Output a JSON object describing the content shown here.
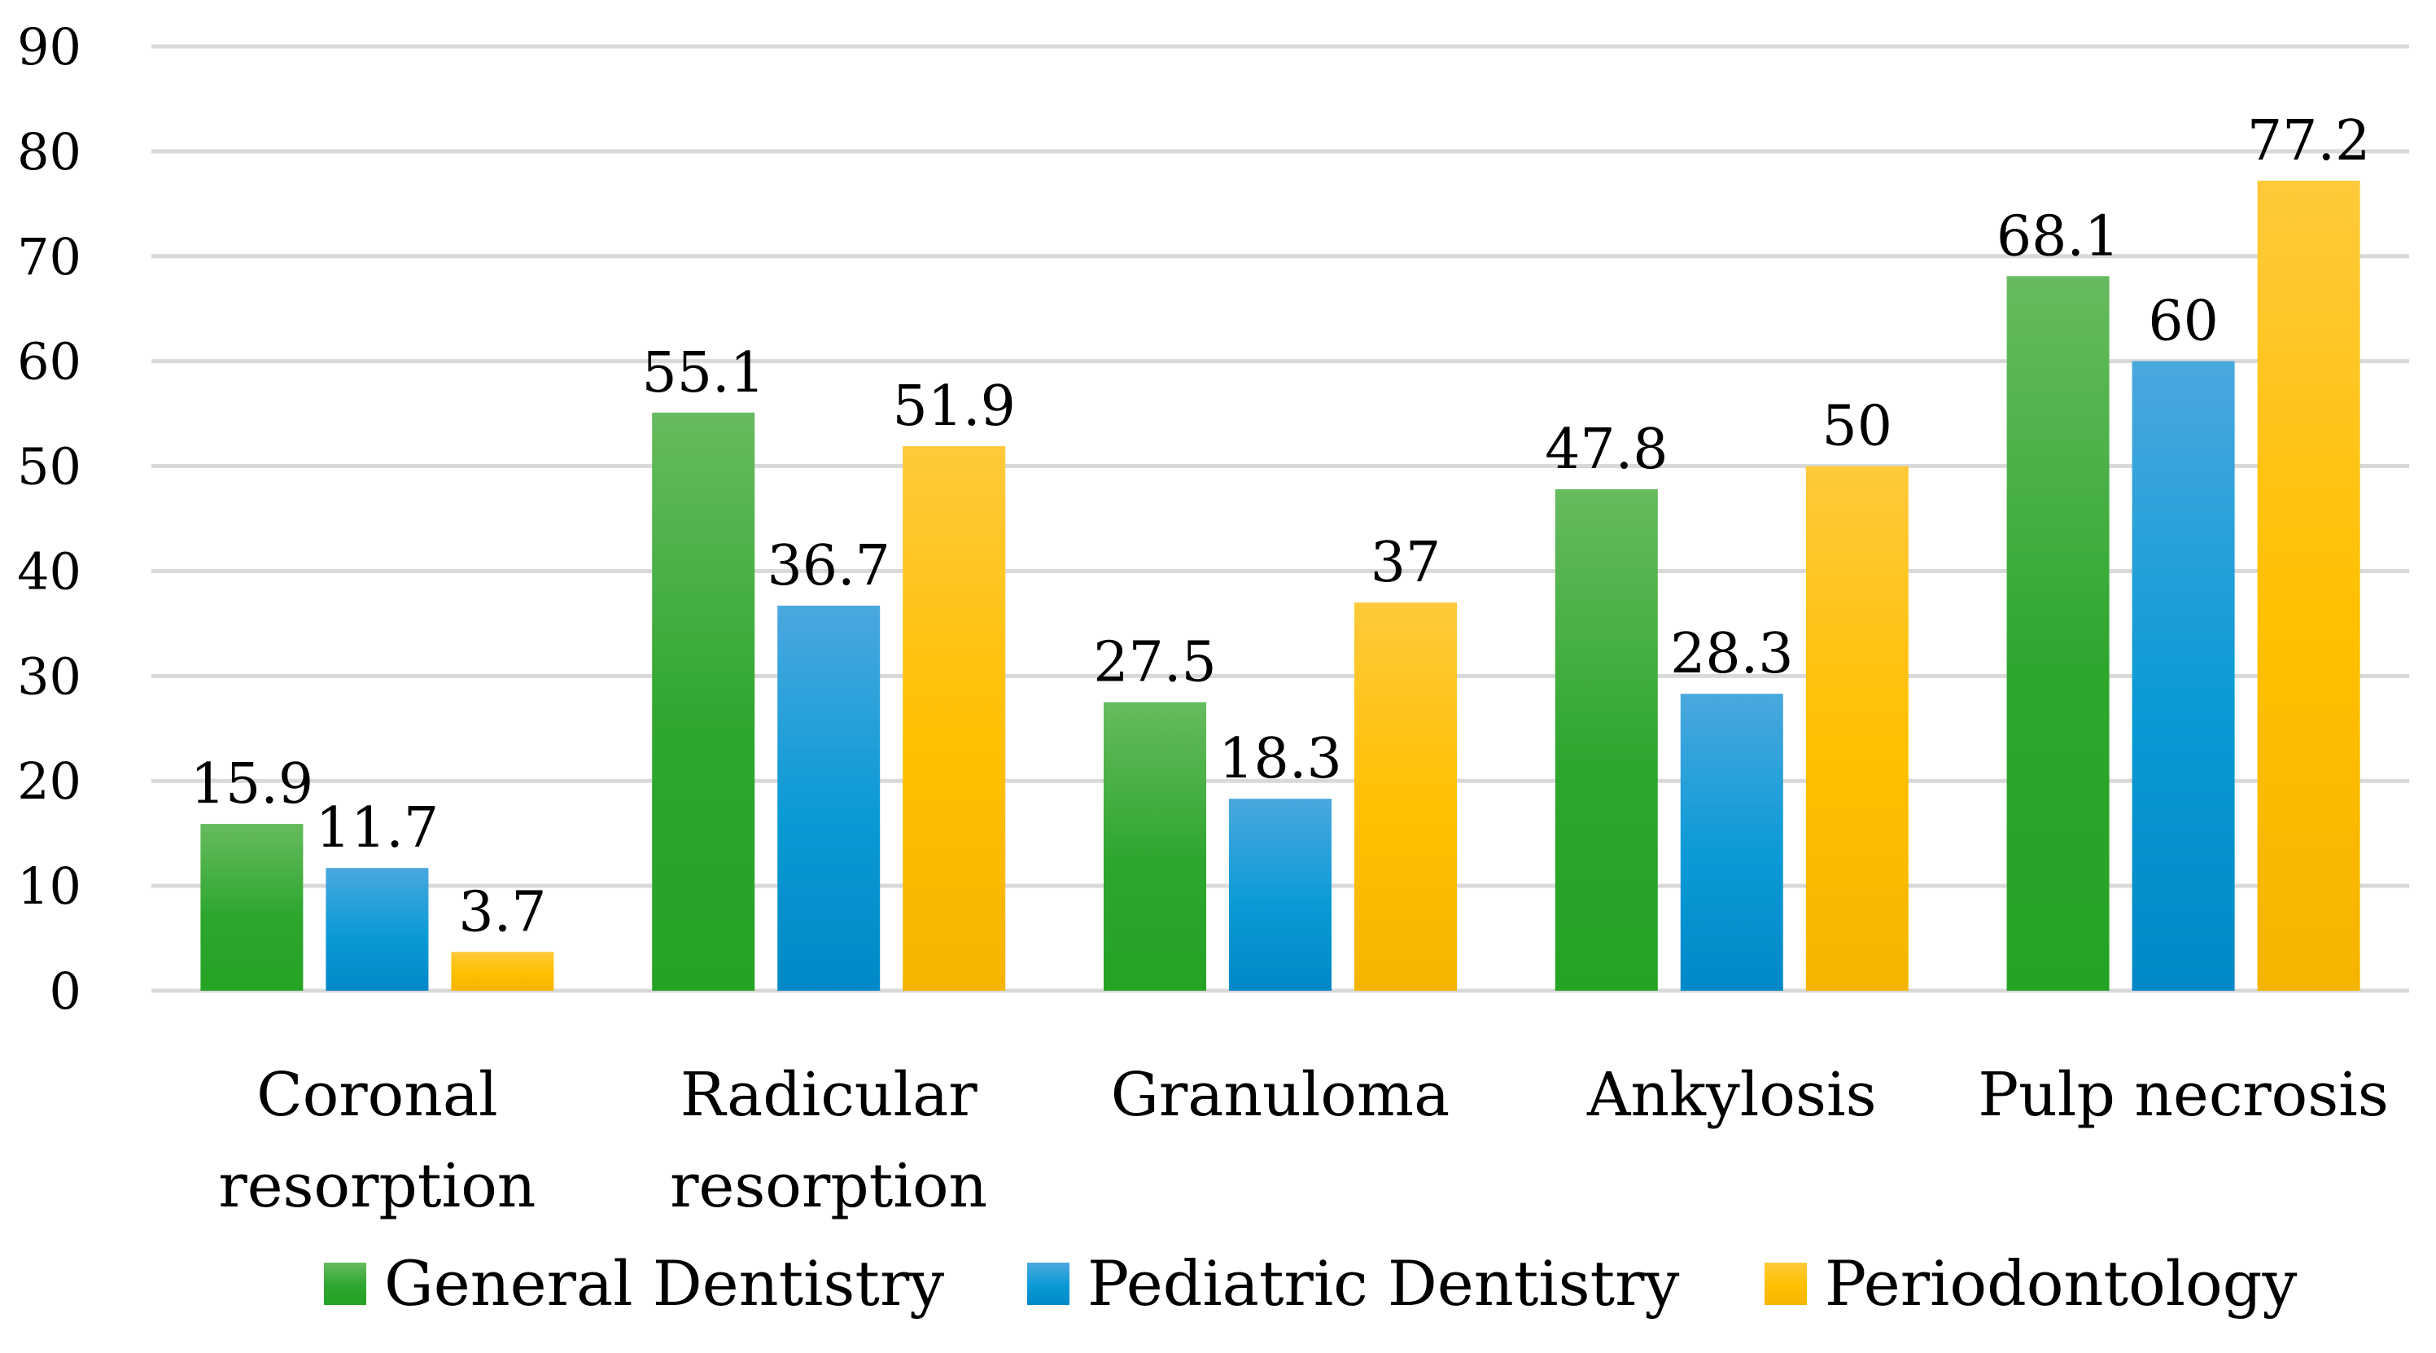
{
  "chart_data": {
    "type": "bar",
    "title": "",
    "xlabel": "",
    "ylabel": "",
    "ylim": [
      0,
      90
    ],
    "yticks": [
      0,
      10,
      20,
      30,
      40,
      50,
      60,
      70,
      80,
      90
    ],
    "grid": true,
    "legend_position": "bottom",
    "categories": [
      [
        "Coronal",
        "resorption"
      ],
      [
        "Radicular",
        "resorption"
      ],
      [
        "Granuloma"
      ],
      [
        "Ankylosis"
      ],
      [
        "Pulp necrosis"
      ]
    ],
    "series": [
      {
        "name": "General Dentistry",
        "color": "#2ea62e",
        "color_light": "#66bb5e",
        "color_dark": "#24a324",
        "values": [
          15.9,
          55.1,
          27.5,
          47.8,
          68.1
        ],
        "labels": [
          "15.9",
          "55.1",
          "27.5",
          "47.8",
          "68.1"
        ]
      },
      {
        "name": "Pediatric Dentistry",
        "color": "#0a9ad6",
        "color_light": "#4aa8de",
        "color_dark": "#0088c7",
        "values": [
          11.7,
          36.7,
          18.3,
          28.3,
          60
        ],
        "labels": [
          "11.7",
          "36.7",
          "18.3",
          "28.3",
          "60"
        ]
      },
      {
        "name": "Periodontology",
        "color": "#ffc000",
        "color_light": "#ffc93a",
        "color_dark": "#f5b400",
        "values": [
          3.7,
          51.9,
          37,
          50,
          77.2
        ],
        "labels": [
          "3.7",
          "51.9",
          "37",
          "50",
          "77.2"
        ]
      }
    ]
  }
}
